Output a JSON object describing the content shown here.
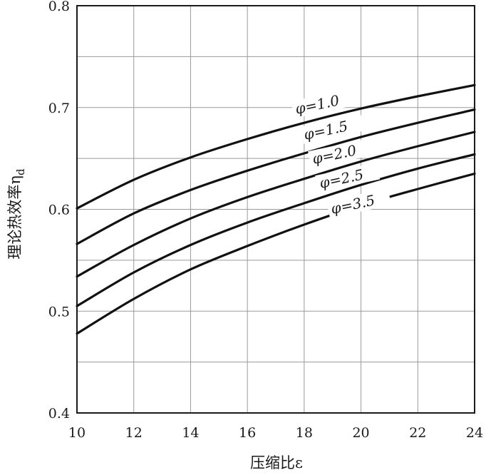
{
  "chart_data": {
    "type": "line",
    "xlabel": "压缩比ε",
    "ylabel": "理论热效率η",
    "ylabel_sub": "d",
    "xlim": [
      10,
      24
    ],
    "ylim": [
      0.4,
      0.8
    ],
    "x_ticks": [
      "10",
      "12",
      "14",
      "16",
      "18",
      "20",
      "22",
      "24"
    ],
    "y_ticks": [
      "0.4",
      "0.5",
      "0.6",
      "0.7",
      "0.8"
    ],
    "x_minor_step": 2,
    "y_minor_step": 0.05,
    "grid": true,
    "x": [
      10,
      12,
      14,
      16,
      18,
      20,
      22,
      24
    ],
    "series": [
      {
        "name": "φ=1.0",
        "values": [
          0.601,
          0.629,
          0.651,
          0.669,
          0.685,
          0.699,
          0.711,
          0.722
        ]
      },
      {
        "name": "φ=1.5",
        "values": [
          0.566,
          0.596,
          0.619,
          0.638,
          0.655,
          0.671,
          0.685,
          0.698
        ]
      },
      {
        "name": "φ=2.0",
        "values": [
          0.534,
          0.565,
          0.591,
          0.612,
          0.63,
          0.647,
          0.662,
          0.676
        ]
      },
      {
        "name": "φ=2.5",
        "values": [
          0.505,
          0.538,
          0.565,
          0.587,
          0.606,
          0.624,
          0.64,
          0.654
        ]
      },
      {
        "name": "φ=3.5",
        "values": [
          0.478,
          0.512,
          0.541,
          0.564,
          0.585,
          0.604,
          0.62,
          0.635
        ]
      }
    ]
  }
}
